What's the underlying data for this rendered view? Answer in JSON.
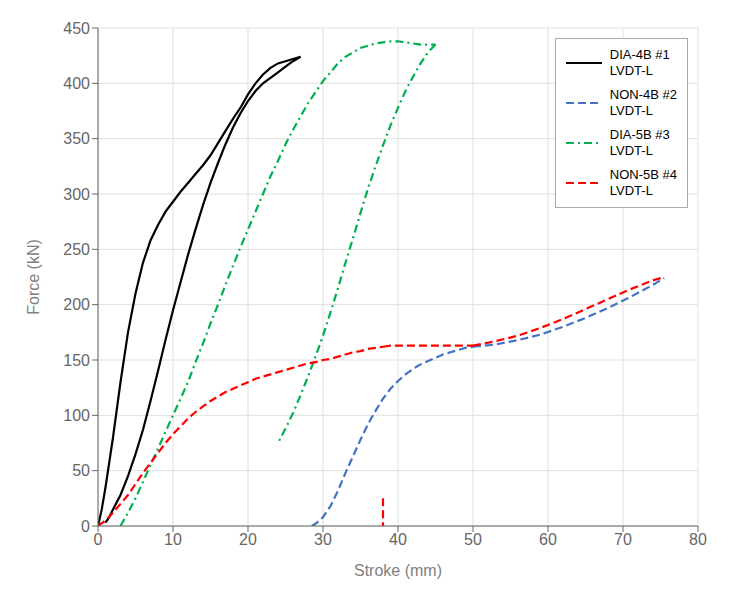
{
  "chart_data": {
    "type": "line",
    "xlabel": "Stroke (mm)",
    "ylabel": "Force (kN)",
    "xlim": [
      0,
      80
    ],
    "ylim": [
      0,
      450
    ],
    "xticks": [
      0,
      10,
      20,
      30,
      40,
      50,
      60,
      70,
      80
    ],
    "yticks": [
      0,
      50,
      100,
      150,
      200,
      250,
      300,
      350,
      400,
      450
    ],
    "grid": true,
    "legend": "upper right",
    "series": [
      {
        "name": "DIA-4B #1\nLVDT-L",
        "color": "#000000",
        "line_style": "solid",
        "segments": [
          {
            "x": [
              0,
              0.5,
              1,
              2,
              3,
              4,
              5,
              6,
              7,
              8,
              9,
              10,
              11,
              12,
              13,
              14,
              15,
              16,
              17,
              18,
              19,
              20,
              21,
              22,
              23,
              24,
              25,
              26,
              27
            ],
            "y": [
              0,
              15,
              35,
              80,
              130,
              175,
              210,
              238,
              258,
              272,
              284,
              293,
              302,
              310,
              318,
              326,
              335,
              346,
              357,
              368,
              378,
              390,
              400,
              408,
              414,
              418,
              420,
              422,
              424
            ]
          },
          {
            "x": [
              27,
              26.5,
              26,
              25,
              24,
              23,
              22,
              21,
              20,
              19,
              18,
              17,
              16,
              15,
              14,
              13,
              12,
              11,
              10,
              9,
              8,
              7,
              6,
              5,
              4,
              3,
              2,
              1.5,
              1
            ],
            "y": [
              424,
              422,
              420,
              415,
              410,
              405,
              400,
              393,
              384,
              373,
              360,
              345,
              328,
              310,
              290,
              268,
              245,
              220,
              195,
              168,
              140,
              113,
              87,
              65,
              45,
              28,
              15,
              8,
              3
            ]
          }
        ]
      },
      {
        "name": "NON-4B #2\nLVDT-L",
        "color": "#4472C4",
        "line_style": "dashed",
        "segments": [
          {
            "x": [
              28.5,
              29,
              30,
              31,
              32,
              33,
              34,
              35,
              36,
              37,
              38,
              39,
              40,
              41,
              42,
              43,
              44,
              45,
              46,
              47,
              48,
              49,
              50
            ],
            "y": [
              0,
              2,
              8,
              18,
              32,
              48,
              63,
              78,
              92,
              104,
              115,
              124,
              131,
              137,
              142,
              146,
              149,
              152,
              155,
              157,
              159,
              161,
              162
            ]
          },
          {
            "x": [
              50,
              53,
              56,
              59,
              62,
              65,
              68,
              71,
              74,
              75.5
            ],
            "y": [
              162,
              164,
              168,
              173,
              180,
              188,
              197,
              207,
              218,
              224
            ]
          }
        ]
      },
      {
        "name": "DIA-5B #3\nLVDT-L",
        "color": "#00B050",
        "line_style": "dashdot",
        "segments": [
          {
            "x": [
              3,
              4,
              5,
              6,
              7,
              8,
              9,
              10,
              11,
              12,
              13,
              14,
              15,
              16,
              17,
              18,
              19,
              20,
              21,
              22,
              23,
              24,
              25,
              26,
              27,
              28,
              29,
              30,
              31,
              32,
              33,
              34,
              35,
              36,
              37,
              38,
              39,
              40,
              41,
              42,
              43,
              44,
              45
            ],
            "y": [
              0,
              12,
              25,
              40,
              55,
              70,
              85,
              100,
              115,
              130,
              148,
              165,
              183,
              200,
              218,
              235,
              252,
              268,
              284,
              300,
              316,
              330,
              345,
              358,
              370,
              382,
              392,
              402,
              410,
              418,
              424,
              428,
              432,
              434,
              436,
              437,
              438,
              438,
              437,
              436,
              435,
              435,
              435
            ]
          },
          {
            "x": [
              45,
              44,
              43,
              42,
              41,
              40,
              39,
              38,
              37,
              36,
              35,
              34,
              33,
              32,
              31,
              30,
              29,
              28,
              27,
              26,
              25,
              24
            ],
            "y": [
              435,
              428,
              418,
              406,
              393,
              378,
              362,
              344,
              325,
              305,
              283,
              260,
              238,
              215,
              193,
              172,
              153,
              135,
              118,
              102,
              88,
              75
            ]
          }
        ]
      },
      {
        "name": "NON-5B #4\nLVDT-L",
        "color": "#FF0000",
        "line_style": "dashed",
        "segments": [
          {
            "x": [
              0,
              1,
              2,
              3,
              4,
              5,
              6,
              7,
              8,
              9,
              10,
              11,
              12,
              13,
              14,
              15,
              16,
              17,
              18,
              19,
              20,
              21,
              22,
              23,
              24,
              25,
              26,
              27,
              28,
              29,
              30,
              31,
              32,
              33,
              34,
              35,
              36,
              37,
              38
            ],
            "y": [
              0,
              5,
              12,
              20,
              28,
              38,
              48,
              57,
              66,
              75,
              83,
              90,
              97,
              103,
              108,
              113,
              117,
              121,
              124,
              127,
              130,
              133,
              135,
              137,
              139,
              141,
              143,
              145,
              147,
              148,
              150,
              151,
              153,
              155,
              157,
              158,
              160,
              161,
              162
            ]
          },
          {
            "x": [
              38,
              38
            ],
            "y": [
              25,
              0
            ]
          },
          {
            "x": [
              38,
              39,
              40,
              41,
              42,
              43,
              44,
              45,
              46,
              47,
              48,
              49,
              50
            ],
            "y": [
              162,
              163,
              163,
              163,
              163,
              163,
              163,
              163,
              163,
              163,
              163,
              163,
              163
            ]
          },
          {
            "x": [
              50,
              53,
              56,
              59,
              62,
              65,
              68,
              71,
              74,
              75.5
            ],
            "y": [
              163,
              167,
              172,
              179,
              187,
              196,
              205,
              214,
              222,
              225
            ]
          }
        ]
      }
    ]
  }
}
